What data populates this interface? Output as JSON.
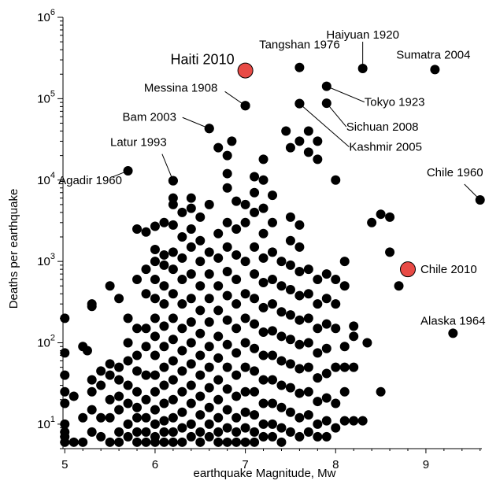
{
  "chart_data": {
    "type": "scatter",
    "title": "",
    "xlabel": "earthquake Magnitude, Mw",
    "ylabel": "Deaths per earthquake",
    "x_scale": "linear",
    "y_scale": "log",
    "xlim": [
      4.98,
      9.62
    ],
    "ylim": [
      5,
      1000000
    ],
    "x_ticks": [
      {
        "value": 5,
        "label": "5"
      },
      {
        "value": 6,
        "label": "6"
      },
      {
        "value": 7,
        "label": "7"
      },
      {
        "value": 8,
        "label": "8"
      },
      {
        "value": 9,
        "label": "9"
      }
    ],
    "y_ticks": [
      {
        "value": 10,
        "base": "10",
        "exp": "1"
      },
      {
        "value": 100,
        "base": "10",
        "exp": "2"
      },
      {
        "value": 1000,
        "base": "10",
        "exp": "3"
      },
      {
        "value": 10000,
        "base": "10",
        "exp": "4"
      },
      {
        "value": 100000,
        "base": "10",
        "exp": "5"
      },
      {
        "value": 1000000,
        "base": "10",
        "exp": "6"
      }
    ],
    "grid": false,
    "legend": "none",
    "colors": {
      "points": "#000000",
      "highlight": "#e84a45",
      "highlight_stroke": "#000000"
    },
    "highlighted": [
      {
        "label": "Haiti 2010",
        "x": 7.0,
        "y": 222000
      },
      {
        "label": "Chile 2010",
        "x": 8.8,
        "y": 800
      }
    ],
    "annotations": [
      {
        "label": "Tangshan 1976",
        "x": 7.6,
        "y": 242000
      },
      {
        "label": "Haiyuan 1920",
        "x": 8.3,
        "y": 235000
      },
      {
        "label": "Sumatra 2004",
        "x": 9.1,
        "y": 228000
      },
      {
        "label": "Messina 1908",
        "x": 7.0,
        "y": 82000
      },
      {
        "label": "Tokyo 1923",
        "x": 7.9,
        "y": 142000
      },
      {
        "label": "Bam 2003",
        "x": 6.6,
        "y": 43000
      },
      {
        "label": "Sichuan 2008",
        "x": 7.9,
        "y": 88000
      },
      {
        "label": "Kashmir  2005",
        "x": 7.6,
        "y": 87000
      },
      {
        "label": "Latur 1993",
        "x": 6.2,
        "y": 9800
      },
      {
        "label": "Agadir 1960",
        "x": 5.7,
        "y": 13000
      },
      {
        "label": "Chile 1960",
        "x": 9.6,
        "y": 5700
      },
      {
        "label": "Alaska 1964",
        "x": 9.3,
        "y": 131
      }
    ],
    "points": [
      [
        5.0,
        200
      ],
      [
        5.0,
        75
      ],
      [
        5.0,
        40
      ],
      [
        5.0,
        25
      ],
      [
        5.0,
        18
      ],
      [
        5.0,
        10
      ],
      [
        5.0,
        8
      ],
      [
        5.0,
        7
      ],
      [
        5.0,
        6
      ],
      [
        5.1,
        22
      ],
      [
        5.1,
        6
      ],
      [
        5.2,
        90
      ],
      [
        5.2,
        12
      ],
      [
        5.2,
        6
      ],
      [
        5.25,
        80
      ],
      [
        5.3,
        300
      ],
      [
        5.3,
        280
      ],
      [
        5.3,
        35
      ],
      [
        5.3,
        25
      ],
      [
        5.3,
        15
      ],
      [
        5.3,
        8
      ],
      [
        5.4,
        45
      ],
      [
        5.4,
        30
      ],
      [
        5.4,
        12
      ],
      [
        5.4,
        7
      ],
      [
        5.5,
        500
      ],
      [
        5.5,
        55
      ],
      [
        5.5,
        40
      ],
      [
        5.5,
        20
      ],
      [
        5.5,
        12
      ],
      [
        5.5,
        6
      ],
      [
        5.6,
        350
      ],
      [
        5.6,
        50
      ],
      [
        5.6,
        35
      ],
      [
        5.6,
        22
      ],
      [
        5.6,
        15
      ],
      [
        5.6,
        8
      ],
      [
        5.6,
        6
      ],
      [
        5.7,
        200
      ],
      [
        5.7,
        100
      ],
      [
        5.7,
        60
      ],
      [
        5.7,
        30
      ],
      [
        5.7,
        18
      ],
      [
        5.7,
        10
      ],
      [
        5.7,
        7
      ],
      [
        5.8,
        2500
      ],
      [
        5.8,
        600
      ],
      [
        5.8,
        150
      ],
      [
        5.8,
        70
      ],
      [
        5.8,
        45
      ],
      [
        5.8,
        25
      ],
      [
        5.8,
        16
      ],
      [
        5.8,
        12
      ],
      [
        5.8,
        8
      ],
      [
        5.8,
        6
      ],
      [
        5.9,
        2300
      ],
      [
        5.9,
        800
      ],
      [
        5.9,
        400
      ],
      [
        5.9,
        150
      ],
      [
        5.9,
        90
      ],
      [
        5.9,
        40
      ],
      [
        5.9,
        20
      ],
      [
        5.9,
        12
      ],
      [
        5.9,
        8
      ],
      [
        5.9,
        6
      ],
      [
        6.0,
        2700
      ],
      [
        6.0,
        1400
      ],
      [
        6.0,
        1000
      ],
      [
        6.0,
        600
      ],
      [
        6.0,
        350
      ],
      [
        6.0,
        200
      ],
      [
        6.0,
        120
      ],
      [
        6.0,
        70
      ],
      [
        6.0,
        40
      ],
      [
        6.0,
        25
      ],
      [
        6.0,
        15
      ],
      [
        6.0,
        10
      ],
      [
        6.0,
        7
      ],
      [
        6.0,
        6
      ],
      [
        6.1,
        3000
      ],
      [
        6.1,
        1200
      ],
      [
        6.1,
        900
      ],
      [
        6.1,
        500
      ],
      [
        6.1,
        300
      ],
      [
        6.1,
        160
      ],
      [
        6.1,
        90
      ],
      [
        6.1,
        50
      ],
      [
        6.1,
        30
      ],
      [
        6.1,
        18
      ],
      [
        6.1,
        11
      ],
      [
        6.1,
        8
      ],
      [
        6.1,
        6
      ],
      [
        6.2,
        9800
      ],
      [
        6.2,
        6000
      ],
      [
        6.2,
        5000
      ],
      [
        6.2,
        2800
      ],
      [
        6.2,
        1300
      ],
      [
        6.2,
        800
      ],
      [
        6.2,
        400
      ],
      [
        6.2,
        200
      ],
      [
        6.2,
        110
      ],
      [
        6.2,
        60
      ],
      [
        6.2,
        35
      ],
      [
        6.2,
        20
      ],
      [
        6.2,
        12
      ],
      [
        6.2,
        8
      ],
      [
        6.2,
        6
      ],
      [
        6.3,
        4000
      ],
      [
        6.3,
        2000
      ],
      [
        6.3,
        1100
      ],
      [
        6.3,
        600
      ],
      [
        6.3,
        300
      ],
      [
        6.3,
        150
      ],
      [
        6.3,
        80
      ],
      [
        6.3,
        45
      ],
      [
        6.3,
        25
      ],
      [
        6.3,
        14
      ],
      [
        6.3,
        9
      ],
      [
        6.3,
        6
      ],
      [
        6.4,
        6000
      ],
      [
        6.4,
        4500
      ],
      [
        6.4,
        2500
      ],
      [
        6.4,
        1500
      ],
      [
        6.4,
        700
      ],
      [
        6.4,
        350
      ],
      [
        6.4,
        180
      ],
      [
        6.4,
        100
      ],
      [
        6.4,
        55
      ],
      [
        6.4,
        30
      ],
      [
        6.4,
        18
      ],
      [
        6.4,
        10
      ],
      [
        6.4,
        7
      ],
      [
        6.5,
        3500
      ],
      [
        6.5,
        1800
      ],
      [
        6.5,
        1000
      ],
      [
        6.5,
        500
      ],
      [
        6.5,
        250
      ],
      [
        6.5,
        130
      ],
      [
        6.5,
        70
      ],
      [
        6.5,
        40
      ],
      [
        6.5,
        22
      ],
      [
        6.5,
        13
      ],
      [
        6.5,
        8
      ],
      [
        6.5,
        6
      ],
      [
        6.6,
        43000
      ],
      [
        6.6,
        5000
      ],
      [
        6.6,
        1300
      ],
      [
        6.6,
        700
      ],
      [
        6.6,
        350
      ],
      [
        6.6,
        180
      ],
      [
        6.6,
        90
      ],
      [
        6.6,
        50
      ],
      [
        6.6,
        28
      ],
      [
        6.6,
        16
      ],
      [
        6.6,
        10
      ],
      [
        6.6,
        7
      ],
      [
        6.7,
        25000
      ],
      [
        6.7,
        2200
      ],
      [
        6.7,
        1100
      ],
      [
        6.7,
        500
      ],
      [
        6.7,
        250
      ],
      [
        6.7,
        120
      ],
      [
        6.7,
        65
      ],
      [
        6.7,
        35
      ],
      [
        6.7,
        20
      ],
      [
        6.7,
        12
      ],
      [
        6.7,
        8
      ],
      [
        6.7,
        6
      ],
      [
        6.8,
        20000
      ],
      [
        6.8,
        12000
      ],
      [
        6.8,
        8000
      ],
      [
        6.8,
        3000
      ],
      [
        6.8,
        1500
      ],
      [
        6.8,
        750
      ],
      [
        6.8,
        380
      ],
      [
        6.8,
        190
      ],
      [
        6.8,
        95
      ],
      [
        6.8,
        50
      ],
      [
        6.8,
        27
      ],
      [
        6.8,
        15
      ],
      [
        6.8,
        9
      ],
      [
        6.8,
        6
      ],
      [
        6.85,
        30000
      ],
      [
        6.9,
        5500
      ],
      [
        6.9,
        2500
      ],
      [
        6.9,
        1200
      ],
      [
        6.9,
        600
      ],
      [
        6.9,
        300
      ],
      [
        6.9,
        150
      ],
      [
        6.9,
        75
      ],
      [
        6.9,
        40
      ],
      [
        6.9,
        22
      ],
      [
        6.9,
        12
      ],
      [
        6.9,
        8
      ],
      [
        6.9,
        6
      ],
      [
        7.0,
        82000
      ],
      [
        7.0,
        5000
      ],
      [
        7.0,
        3000
      ],
      [
        7.0,
        1000
      ],
      [
        7.0,
        400
      ],
      [
        7.0,
        200
      ],
      [
        7.0,
        100
      ],
      [
        7.0,
        50
      ],
      [
        7.0,
        25
      ],
      [
        7.0,
        14
      ],
      [
        7.0,
        9
      ],
      [
        7.0,
        6
      ],
      [
        7.1,
        11000
      ],
      [
        7.1,
        7000
      ],
      [
        7.1,
        4000
      ],
      [
        7.1,
        1500
      ],
      [
        7.1,
        700
      ],
      [
        7.1,
        350
      ],
      [
        7.1,
        170
      ],
      [
        7.1,
        85
      ],
      [
        7.1,
        45
      ],
      [
        7.1,
        25
      ],
      [
        7.1,
        13
      ],
      [
        7.1,
        8
      ],
      [
        7.1,
        6
      ],
      [
        7.2,
        18000
      ],
      [
        7.2,
        10000
      ],
      [
        7.2,
        4500
      ],
      [
        7.2,
        2200
      ],
      [
        7.2,
        1100
      ],
      [
        7.2,
        550
      ],
      [
        7.2,
        270
      ],
      [
        7.2,
        135
      ],
      [
        7.2,
        70
      ],
      [
        7.2,
        35
      ],
      [
        7.2,
        18
      ],
      [
        7.2,
        10
      ],
      [
        7.2,
        7
      ],
      [
        7.3,
        6500
      ],
      [
        7.3,
        3000
      ],
      [
        7.3,
        1300
      ],
      [
        7.3,
        600
      ],
      [
        7.3,
        300
      ],
      [
        7.3,
        140
      ],
      [
        7.3,
        70
      ],
      [
        7.3,
        35
      ],
      [
        7.3,
        18
      ],
      [
        7.3,
        10
      ],
      [
        7.3,
        7
      ],
      [
        7.4,
        1000
      ],
      [
        7.4,
        500
      ],
      [
        7.4,
        240
      ],
      [
        7.4,
        120
      ],
      [
        7.4,
        60
      ],
      [
        7.4,
        30
      ],
      [
        7.4,
        16
      ],
      [
        7.4,
        9
      ],
      [
        7.4,
        6
      ],
      [
        7.45,
        40000
      ],
      [
        7.5,
        25000
      ],
      [
        7.5,
        3500
      ],
      [
        7.5,
        1800
      ],
      [
        7.5,
        900
      ],
      [
        7.5,
        450
      ],
      [
        7.5,
        220
      ],
      [
        7.5,
        110
      ],
      [
        7.5,
        55
      ],
      [
        7.5,
        28
      ],
      [
        7.5,
        14
      ],
      [
        7.5,
        8
      ],
      [
        7.6,
        87000
      ],
      [
        7.6,
        30000
      ],
      [
        7.6,
        2800
      ],
      [
        7.6,
        1500
      ],
      [
        7.6,
        750
      ],
      [
        7.6,
        380
      ],
      [
        7.6,
        190
      ],
      [
        7.6,
        95
      ],
      [
        7.6,
        48
      ],
      [
        7.6,
        24
      ],
      [
        7.6,
        12
      ],
      [
        7.6,
        7
      ],
      [
        7.7,
        40000
      ],
      [
        7.7,
        22000
      ],
      [
        7.7,
        800
      ],
      [
        7.7,
        400
      ],
      [
        7.7,
        200
      ],
      [
        7.7,
        100
      ],
      [
        7.7,
        50
      ],
      [
        7.7,
        25
      ],
      [
        7.7,
        13
      ],
      [
        7.7,
        8
      ],
      [
        7.8,
        30000
      ],
      [
        7.8,
        18000
      ],
      [
        7.8,
        600
      ],
      [
        7.8,
        300
      ],
      [
        7.8,
        150
      ],
      [
        7.8,
        75
      ],
      [
        7.8,
        37
      ],
      [
        7.8,
        19
      ],
      [
        7.8,
        10
      ],
      [
        7.8,
        7
      ],
      [
        7.9,
        700
      ],
      [
        7.9,
        350
      ],
      [
        7.9,
        170
      ],
      [
        7.9,
        85
      ],
      [
        7.9,
        42
      ],
      [
        7.9,
        21
      ],
      [
        7.9,
        11
      ],
      [
        7.9,
        7
      ],
      [
        8.0,
        10000
      ],
      [
        8.0,
        600
      ],
      [
        8.0,
        300
      ],
      [
        8.0,
        150
      ],
      [
        8.0,
        50
      ],
      [
        8.0,
        18
      ],
      [
        8.0,
        9
      ],
      [
        8.1,
        1000
      ],
      [
        8.1,
        500
      ],
      [
        8.1,
        90
      ],
      [
        8.1,
        50
      ],
      [
        8.1,
        25
      ],
      [
        8.1,
        11
      ],
      [
        8.2,
        160
      ],
      [
        8.2,
        120
      ],
      [
        8.2,
        50
      ],
      [
        8.2,
        11
      ],
      [
        8.3,
        11
      ],
      [
        8.35,
        100
      ],
      [
        8.4,
        3000
      ],
      [
        8.5,
        3800
      ],
      [
        8.5,
        25
      ],
      [
        8.6,
        3500
      ],
      [
        8.6,
        1300
      ],
      [
        8.7,
        500
      ]
    ]
  }
}
